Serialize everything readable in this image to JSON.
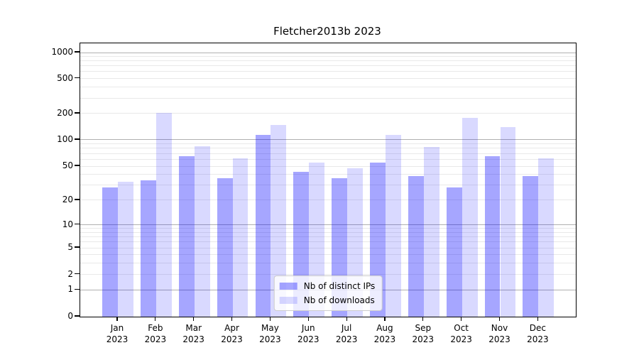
{
  "title": "Fletcher2013b 2023",
  "chart_data": {
    "type": "bar",
    "title": "Fletcher2013b 2023",
    "x_categories": [
      "Jan 2023",
      "Feb 2023",
      "Mar 2023",
      "Apr 2023",
      "May 2023",
      "Jun 2023",
      "Jul 2023",
      "Aug 2023",
      "Sep 2023",
      "Oct 2023",
      "Nov 2023",
      "Dec 2023"
    ],
    "x_tick_month": [
      "Jan",
      "Feb",
      "Mar",
      "Apr",
      "May",
      "Jun",
      "Jul",
      "Aug",
      "Sep",
      "Oct",
      "Nov",
      "Dec"
    ],
    "x_tick_year": "2023",
    "y_scale": "symlog",
    "y_ticks": [
      0,
      1,
      2,
      5,
      10,
      20,
      50,
      100,
      200,
      500,
      1000
    ],
    "y_major_gridlines": [
      1,
      10,
      100,
      1000
    ],
    "grid": "horizontal major+minor",
    "legend_position": "lower center",
    "series": [
      {
        "name": "Nb of distinct IPs",
        "color": "rgba(0,0,255,0.35)",
        "values": [
          28,
          34,
          65,
          36,
          115,
          43,
          36,
          55,
          38,
          28,
          65,
          38
        ]
      },
      {
        "name": "Nb of downloads",
        "color": "rgba(0,0,255,0.15)",
        "values": [
          33,
          205,
          84,
          61,
          149,
          55,
          47,
          113,
          83,
          180,
          139,
          62
        ]
      }
    ]
  },
  "colors": {
    "background": "#ffffff",
    "bar_distinct_ips": "rgba(0,0,255,0.35)",
    "bar_downloads": "rgba(0,0,255,0.15)",
    "major_grid": "#b0b0b0",
    "minor_grid": "#e9e9e9",
    "axis": "#000000",
    "legend_border": "#cccccc"
  }
}
